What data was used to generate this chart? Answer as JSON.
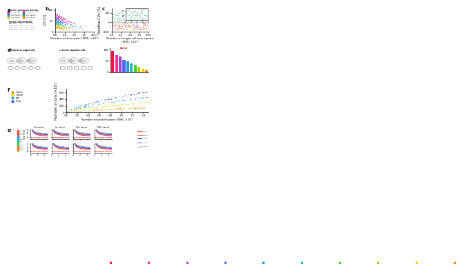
{
  "background_color": "#ffffff",
  "text_color": "#222222",
  "panel_labels": [
    "a",
    "b",
    "c",
    "d",
    "e",
    "f",
    "g"
  ],
  "panel_label_size": 5,
  "axis_label_size": 3.5,
  "tick_label_size": 2.8,
  "carrier_colors": [
    "#e8175d",
    "#cc44aa",
    "#9933cc",
    "#4455dd",
    "#2299cc",
    "#33aa55",
    "#aacc22",
    "#ff8800"
  ],
  "carrier_labels": [
    "1x Hg/cm2",
    "2x Hg/cm2",
    "4x Hg/cm2",
    "8x Hg/cm2",
    "12x Hg/cm2",
    "16x Hg/cm2",
    "24x Hg/cm2",
    "32x Hg/cm2"
  ],
  "scatter_b_colors": [
    "#ee1166",
    "#cc44bb",
    "#9966dd",
    "#5577ee",
    "#22aacc",
    "#44bb77",
    "#aacc33",
    "#ff9900"
  ],
  "scatter_c_top_colors": [
    "#1188cc",
    "#22aa55",
    "#55cc88"
  ],
  "scatter_c_bot_colors": [
    "#ff8800",
    "#ffcc00",
    "#ee3388",
    "#aa44cc"
  ],
  "bar_colors": [
    "#ff1144",
    "#ee3399",
    "#aa44cc",
    "#5566ee",
    "#2299dd",
    "#22bbaa",
    "#44cc44",
    "#aacc00",
    "#ffcc00",
    "#ff8800"
  ],
  "scatter_f_colors": [
    "#ff8800",
    "#ffdd00",
    "#22aacc",
    "#3355dd"
  ],
  "scatter_f_labels": [
    "Protein",
    "Peptide",
    "TMT",
    "Single"
  ],
  "g_line_colors_top": [
    "#cc0000",
    "#ff6666",
    "#0000bb",
    "#6688ff",
    "#999999"
  ],
  "g_line_colors_bot": [
    "#cc0000",
    "#ff6666",
    "#0000bb",
    "#6688ff",
    "#999999"
  ],
  "g_line_labels": [
    "Protein",
    "Peptide",
    "1-3 pep",
    "4-6 pep",
    "7-8 pep"
  ],
  "g_dashed_color": "#ff0000",
  "g_panel_titles": [
    "0x carrier",
    "1x carrier",
    "50x carrier",
    "500x carrier"
  ],
  "g_dot_colors": [
    "#e74c3c",
    "#e74c3c",
    "#e74c3c",
    "#3498db",
    "#3498db",
    "#3498db",
    "#2ecc71",
    "#2ecc71",
    "#2ecc71",
    "#e67e22",
    "#e67e22",
    "#e67e22"
  ],
  "g_dot_labels": [
    "A 1",
    "A 2",
    "A 3",
    "B 1",
    "B 2",
    "B 3",
    "C 1",
    "C 2",
    "C 3",
    "D 1",
    "D 2",
    "D 3"
  ]
}
